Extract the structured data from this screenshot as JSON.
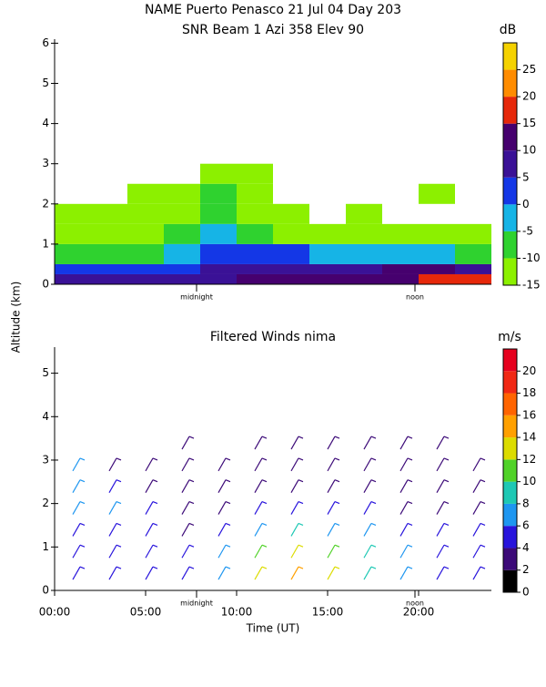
{
  "chart_data": [
    {
      "type": "heatmap",
      "title": "NAME Puerto Penasco  21 Jul 04 Day 203",
      "subtitle": "SNR Beam 1 Azi 358 Elev 90",
      "ylabel": "Altitude (km)",
      "xlim": [
        0,
        24
      ],
      "ylim": [
        0,
        6.1
      ],
      "yticks": [
        0,
        1,
        2,
        3,
        4,
        5,
        6
      ],
      "annotations": [
        {
          "value": 7.8,
          "label": "midnight"
        },
        {
          "value": 19.8,
          "label": "noon"
        }
      ],
      "x_bins": [
        0,
        2,
        4,
        6,
        8,
        10,
        12,
        14,
        16,
        18,
        20,
        22,
        24
      ],
      "y_bins": [
        0,
        0.25,
        0.5,
        1,
        1.5,
        2,
        2.5,
        3
      ],
      "values": [
        [
          5,
          5,
          5,
          5,
          8,
          12,
          10,
          10,
          10,
          12,
          15,
          15
        ],
        [
          0,
          0,
          0,
          2,
          5,
          8,
          8,
          8,
          8,
          10,
          10,
          8
        ],
        [
          -10,
          -8,
          -8,
          -5,
          0,
          2,
          0,
          -5,
          -5,
          -3,
          -5,
          -8
        ],
        [
          -12,
          -12,
          -12,
          -10,
          -5,
          -8,
          -12,
          -12,
          -12,
          -12,
          -12,
          -14
        ],
        [
          -12,
          -14,
          -13,
          -12,
          -8,
          -12,
          -14,
          null,
          -14,
          null,
          null,
          null
        ],
        [
          null,
          null,
          -14,
          -13,
          -10,
          -12,
          null,
          null,
          null,
          null,
          -14,
          null
        ],
        [
          null,
          null,
          null,
          null,
          -12,
          -14,
          null,
          null,
          null,
          null,
          null,
          null
        ]
      ],
      "colorbar": {
        "label": "dB",
        "bounds": [
          -15,
          -10,
          -5,
          0,
          5,
          10,
          15,
          20,
          25,
          30
        ],
        "colors": [
          "#8cf000",
          "#2fd22f",
          "#16b4e6",
          "#1437e6",
          "#3a1196",
          "#46006e",
          "#e6280a",
          "#ff8c00",
          "#f5d200"
        ],
        "ticks": [
          -15,
          -10,
          -5,
          0,
          5,
          10,
          15,
          20,
          25
        ]
      }
    },
    {
      "type": "barbs",
      "title": "Filtered Winds nima",
      "xlabel": "Time (UT)",
      "xlim": [
        0,
        24
      ],
      "ylim": [
        0,
        5.6
      ],
      "yticks": [
        0,
        1,
        2,
        3,
        4,
        5
      ],
      "xticks": [
        {
          "value": 0,
          "label": "00:00"
        },
        {
          "value": 5,
          "label": "05:00"
        },
        {
          "value": 10,
          "label": "10:00"
        },
        {
          "value": 15,
          "label": "15:00"
        },
        {
          "value": 20,
          "label": "20:00"
        }
      ],
      "annotations": [
        {
          "value": 7.8,
          "label": "midnight"
        },
        {
          "value": 19.8,
          "label": "noon"
        }
      ],
      "x": [
        1,
        3,
        5,
        7,
        9,
        11,
        13,
        15,
        17,
        19,
        21,
        23
      ],
      "altitudes": [
        0.25,
        0.75,
        1.25,
        1.75,
        2.25,
        2.75,
        3.25
      ],
      "values": [
        [
          4,
          4,
          4,
          4,
          6,
          12,
          14,
          12,
          8,
          6,
          4,
          4
        ],
        [
          4,
          4,
          4,
          4,
          6,
          10,
          12,
          10,
          8,
          6,
          4,
          4
        ],
        [
          4,
          4,
          4,
          3,
          4,
          6,
          8,
          6,
          6,
          4,
          4,
          4
        ],
        [
          6,
          6,
          4,
          3,
          3,
          4,
          4,
          4,
          4,
          3,
          3,
          3
        ],
        [
          6,
          4,
          3,
          3,
          3,
          3,
          3,
          3,
          3,
          3,
          3,
          3
        ],
        [
          6,
          3,
          3,
          3,
          3,
          3,
          3,
          3,
          3,
          3,
          3,
          3
        ],
        [
          null,
          null,
          null,
          2,
          null,
          3,
          3,
          3,
          3,
          3,
          3,
          null
        ]
      ],
      "colorbar": {
        "label": "m/s",
        "bounds": [
          0,
          2,
          4,
          6,
          8,
          10,
          12,
          14,
          16,
          18,
          20,
          22
        ],
        "colors": [
          "#000000",
          "#3c0a78",
          "#2814dc",
          "#1e96f0",
          "#1ec8b4",
          "#50d228",
          "#dcdc00",
          "#ffa000",
          "#ff6400",
          "#f02814",
          "#e6001e"
        ],
        "ticks": [
          0,
          2,
          4,
          6,
          8,
          10,
          12,
          14,
          16,
          18,
          20
        ]
      }
    }
  ]
}
